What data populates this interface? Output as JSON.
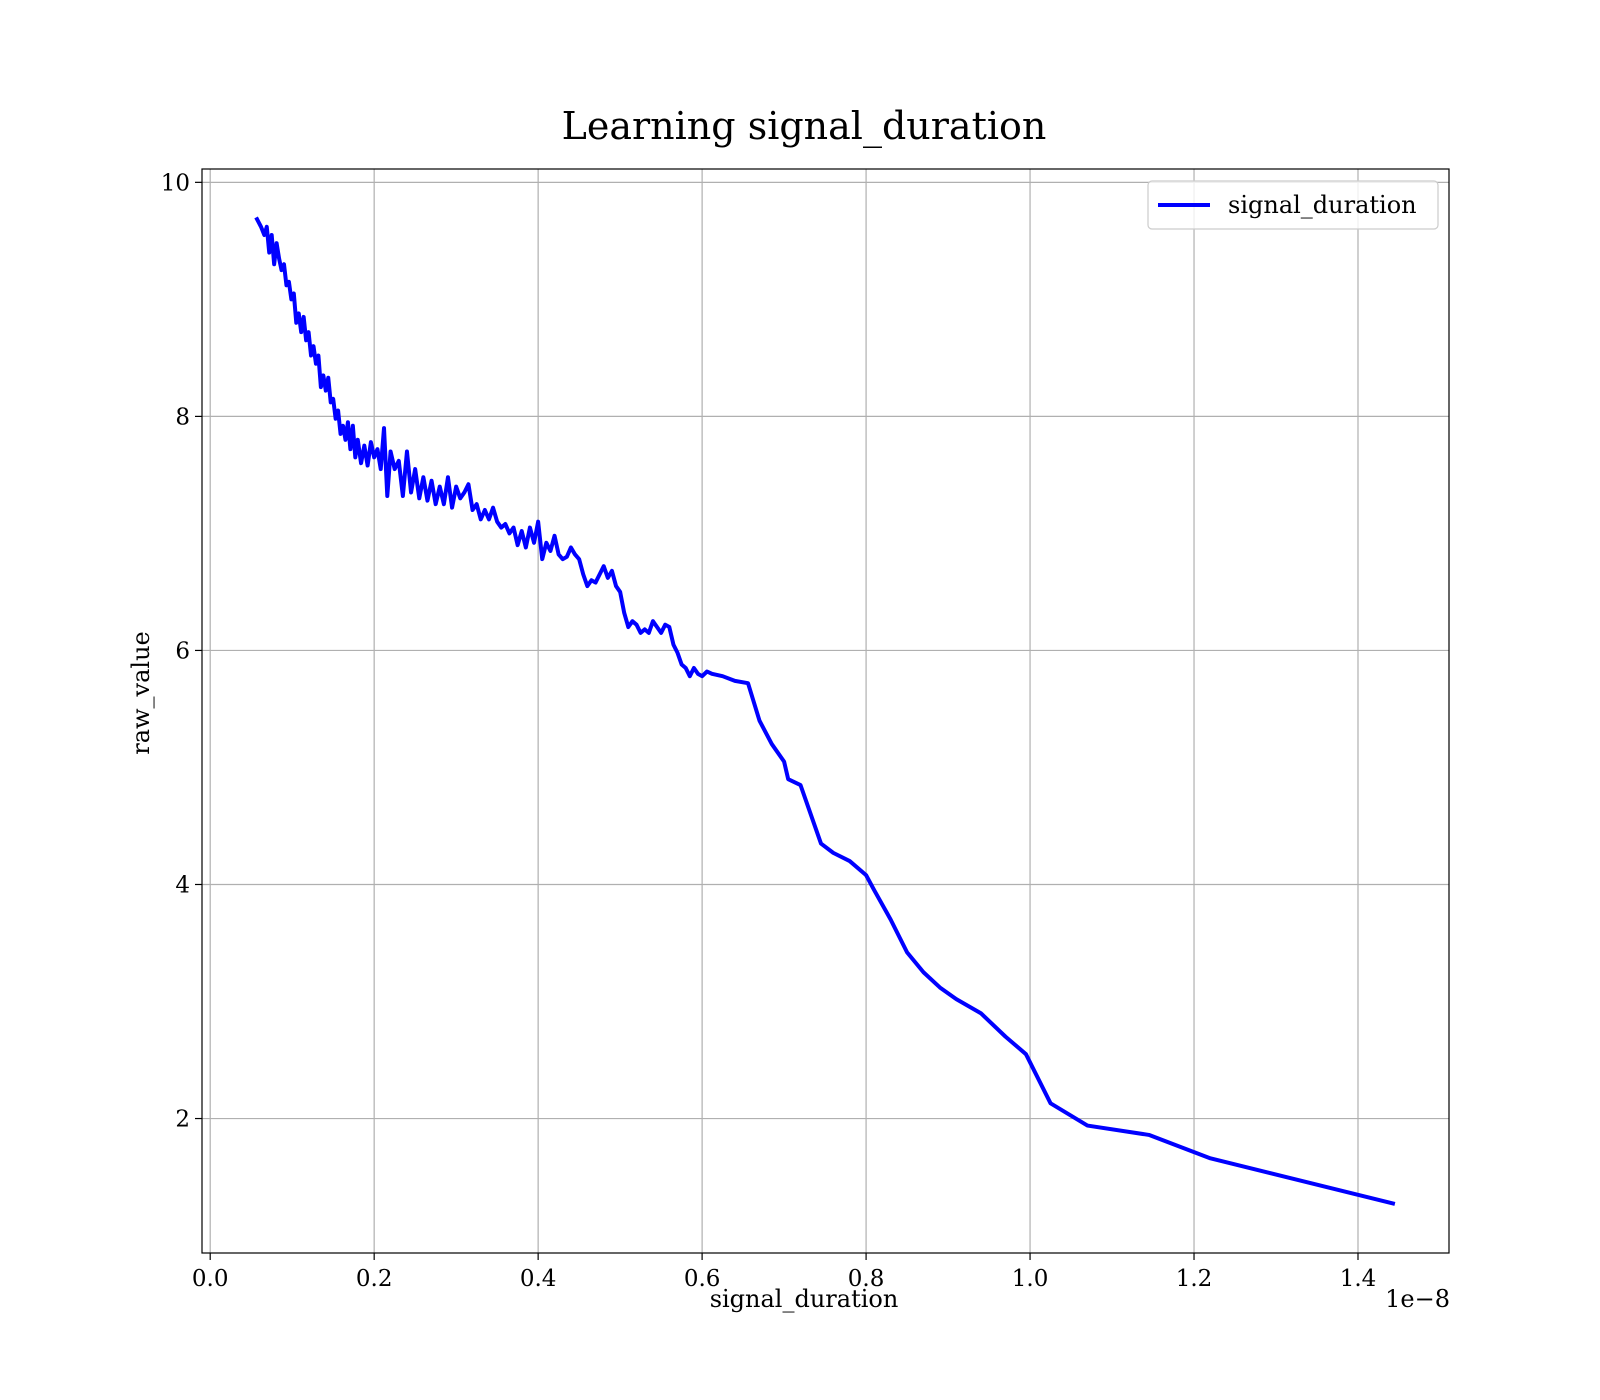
{
  "chart_data": {
    "type": "line",
    "title": "Learning signal_duration",
    "xlabel": "signal_duration",
    "ylabel": "raw_value",
    "x_offset_label": "1e−8",
    "xlim": [
      -0.01,
      1.511
    ],
    "ylim": [
      0.851,
      10.114
    ],
    "xticks": [
      {
        "value": 0,
        "label": "0.0"
      },
      0.2,
      0.4,
      0.6,
      0.8,
      {
        "value": 1,
        "label": "1.0"
      },
      1.2,
      1.4
    ],
    "yticks": [
      2,
      4,
      6,
      8,
      10
    ],
    "grid": true,
    "legend": "upper right",
    "x": [
      0.056,
      0.062,
      0.066,
      0.069,
      0.072,
      0.075,
      0.078,
      0.081,
      0.084,
      0.087,
      0.09,
      0.093,
      0.096,
      0.099,
      0.102,
      0.105,
      0.108,
      0.111,
      0.114,
      0.117,
      0.12,
      0.123,
      0.126,
      0.129,
      0.132,
      0.135,
      0.138,
      0.141,
      0.144,
      0.147,
      0.15,
      0.153,
      0.156,
      0.159,
      0.162,
      0.165,
      0.168,
      0.171,
      0.174,
      0.177,
      0.18,
      0.184,
      0.188,
      0.192,
      0.196,
      0.2,
      0.204,
      0.208,
      0.212,
      0.216,
      0.22,
      0.225,
      0.23,
      0.235,
      0.24,
      0.245,
      0.25,
      0.255,
      0.26,
      0.265,
      0.27,
      0.275,
      0.28,
      0.285,
      0.29,
      0.295,
      0.3,
      0.305,
      0.31,
      0.315,
      0.32,
      0.325,
      0.33,
      0.335,
      0.34,
      0.345,
      0.35,
      0.355,
      0.36,
      0.365,
      0.37,
      0.375,
      0.38,
      0.385,
      0.39,
      0.395,
      0.4,
      0.405,
      0.41,
      0.415,
      0.42,
      0.425,
      0.43,
      0.435,
      0.44,
      0.445,
      0.45,
      0.455,
      0.46,
      0.465,
      0.47,
      0.475,
      0.48,
      0.485,
      0.49,
      0.495,
      0.5,
      0.505,
      0.51,
      0.515,
      0.52,
      0.525,
      0.53,
      0.535,
      0.54,
      0.545,
      0.55,
      0.555,
      0.56,
      0.565,
      0.57,
      0.575,
      0.58,
      0.585,
      0.59,
      0.595,
      0.6,
      0.606,
      0.612,
      0.625,
      0.64,
      0.656,
      0.67,
      0.685,
      0.7,
      0.705,
      0.72,
      0.73,
      0.745,
      0.76,
      0.78,
      0.8,
      0.81,
      0.83,
      0.85,
      0.87,
      0.89,
      0.91,
      0.94,
      0.97,
      0.995,
      1.025,
      1.07,
      1.145,
      1.22,
      1.445
    ],
    "series": [
      {
        "name": "signal_duration",
        "color": "#0000ff",
        "values": [
          9.7,
          9.62,
          9.55,
          9.62,
          9.4,
          9.55,
          9.3,
          9.48,
          9.35,
          9.25,
          9.3,
          9.12,
          9.15,
          9.0,
          9.05,
          8.8,
          8.88,
          8.72,
          8.85,
          8.65,
          8.72,
          8.52,
          8.6,
          8.45,
          8.52,
          8.25,
          8.35,
          8.22,
          8.33,
          8.12,
          8.15,
          7.98,
          8.05,
          7.85,
          7.92,
          7.8,
          7.95,
          7.72,
          7.92,
          7.65,
          7.8,
          7.6,
          7.75,
          7.58,
          7.78,
          7.65,
          7.72,
          7.55,
          7.9,
          7.32,
          7.7,
          7.55,
          7.62,
          7.32,
          7.7,
          7.35,
          7.55,
          7.3,
          7.48,
          7.28,
          7.45,
          7.25,
          7.4,
          7.25,
          7.48,
          7.22,
          7.4,
          7.3,
          7.35,
          7.42,
          7.2,
          7.25,
          7.12,
          7.2,
          7.12,
          7.22,
          7.1,
          7.05,
          7.08,
          7.0,
          7.05,
          6.9,
          7.02,
          6.88,
          7.05,
          6.92,
          7.1,
          6.78,
          6.92,
          6.85,
          6.98,
          6.82,
          6.78,
          6.8,
          6.88,
          6.82,
          6.78,
          6.65,
          6.55,
          6.6,
          6.58,
          6.65,
          6.72,
          6.62,
          6.68,
          6.55,
          6.5,
          6.32,
          6.2,
          6.25,
          6.22,
          6.15,
          6.18,
          6.15,
          6.25,
          6.2,
          6.15,
          6.22,
          6.2,
          6.05,
          5.98,
          5.88,
          5.85,
          5.78,
          5.85,
          5.8,
          5.78,
          5.82,
          5.8,
          5.78,
          5.74,
          5.72,
          5.4,
          5.2,
          5.05,
          4.9,
          4.85,
          4.65,
          4.35,
          4.27,
          4.2,
          4.08,
          3.95,
          3.7,
          3.42,
          3.25,
          3.12,
          3.02,
          2.9,
          2.7,
          2.55,
          2.13,
          1.94,
          1.86,
          1.66,
          1.27
        ]
      }
    ]
  }
}
